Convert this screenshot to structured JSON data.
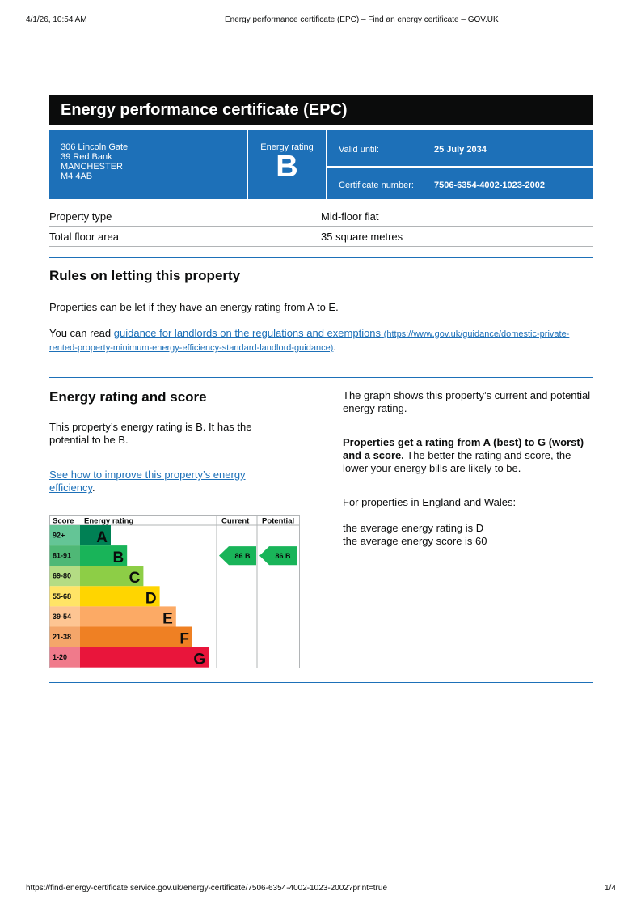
{
  "browser": {
    "datetime": "4/1/26, 10:54 AM",
    "page_title": "Energy performance certificate (EPC) – Find an energy certificate – GOV.UK",
    "url": "https://find-energy-certificate.service.gov.uk/energy-certificate/7506-6354-4002-1023-2002?print=true",
    "page_count": "1/4"
  },
  "title": "Energy performance certificate (EPC)",
  "address": {
    "line1": "306 Lincoln Gate",
    "line2": "39 Red Bank",
    "line3": "MANCHESTER",
    "postcode": "M4 4AB"
  },
  "rating": {
    "label": "Energy rating",
    "value": "B"
  },
  "valid": {
    "label": "Valid until:",
    "value": "25 July 2034"
  },
  "certificate": {
    "label": "Certificate number:",
    "value": "7506-6354-4002-1023-2002"
  },
  "summary": [
    {
      "label": "Property type",
      "value": "Mid-floor flat"
    },
    {
      "label": "Total floor area",
      "value": "35 square metres"
    }
  ],
  "rules": {
    "heading": "Rules on letting this property",
    "p1": "Properties can be let if they have an energy rating from A to E.",
    "p2_prefix": "You can read ",
    "link_text": "guidance for landlords on the regulations and exemptions",
    "link_url": "(https://www.gov.uk/guidance/domestic-private-rented-property-minimum-energy-efficiency-standard-landlord-guidance)",
    "p2_suffix": "."
  },
  "score_section": {
    "heading": "Energy rating and score",
    "p1": "This property’s energy rating is B. It has the potential to be B.",
    "link": "See how to improve this property’s energy efficiency",
    "link_suffix": ".",
    "right_p1": "The graph shows this property’s current and potential energy rating.",
    "right_p2_bold": "Properties get a rating from A (best) to G (worst) and a score.",
    "right_p2_rest": " The better the rating and score, the lower your energy bills are likely to be.",
    "right_p3": "For properties in England and Wales:",
    "right_p4a": "the average energy rating is D",
    "right_p4b": "the average energy score is 60"
  },
  "chart_data": {
    "type": "table",
    "headers": [
      "Score",
      "Energy rating",
      "Current",
      "Potential"
    ],
    "bands": [
      {
        "letter": "A",
        "range": "92+",
        "color": "#008054",
        "tint": "#64c596"
      },
      {
        "letter": "B",
        "range": "81-91",
        "color": "#19b459",
        "tint": "#4fb876"
      },
      {
        "letter": "C",
        "range": "69-80",
        "color": "#8dce46",
        "tint": "#b4dc84"
      },
      {
        "letter": "D",
        "range": "55-68",
        "color": "#ffd500",
        "tint": "#ffe466"
      },
      {
        "letter": "E",
        "range": "39-54",
        "color": "#fcaa65",
        "tint": "#fdc593"
      },
      {
        "letter": "F",
        "range": "21-38",
        "color": "#ef8023",
        "tint": "#f4a66a"
      },
      {
        "letter": "G",
        "range": "1-20",
        "color": "#e9153b",
        "tint": "#f07a8b"
      }
    ],
    "current": {
      "score": 86,
      "letter": "B",
      "label": "86  B"
    },
    "potential": {
      "score": 86,
      "letter": "B",
      "label": "86  B"
    }
  }
}
